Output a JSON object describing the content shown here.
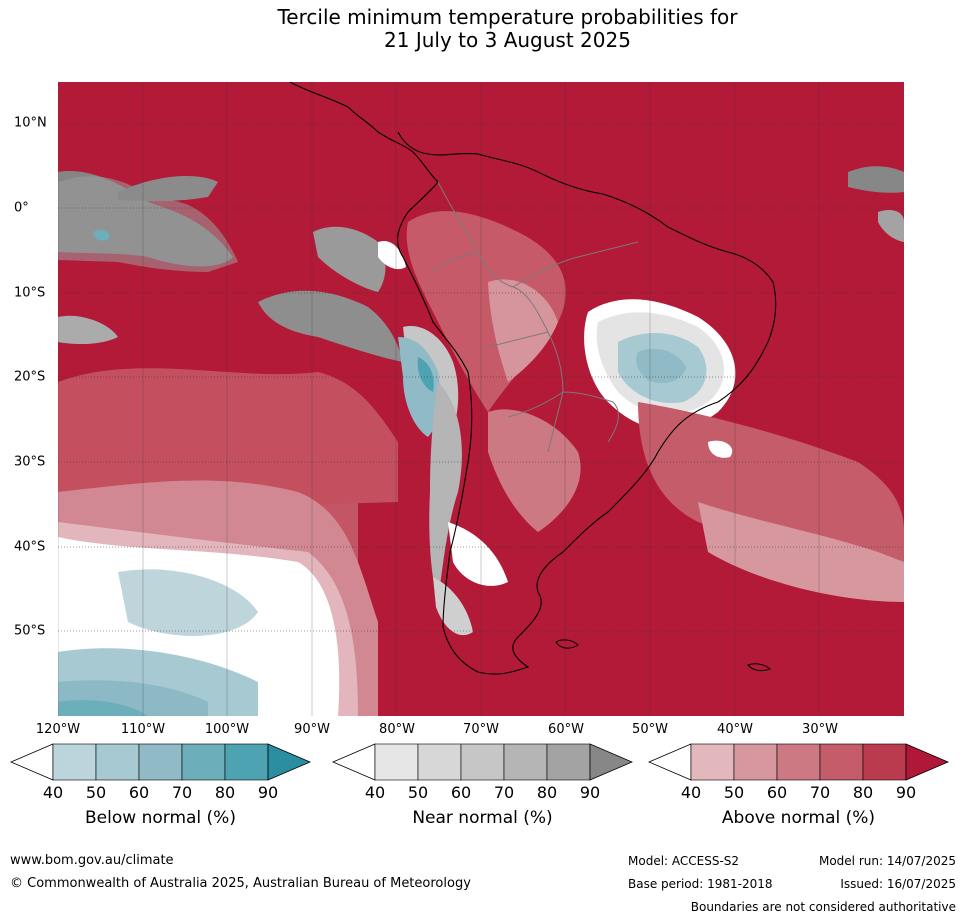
{
  "title_line1": "Tercile minimum temperature probabilities for",
  "title_line2": "21 July to 3 August 2025",
  "lat_labels": [
    "10°N",
    "0°",
    "10°S",
    "20°S",
    "30°S",
    "40°S",
    "50°S"
  ],
  "lon_labels": [
    "120°W",
    "110°W",
    "100°W",
    "90°W",
    "80°W",
    "70°W",
    "60°W",
    "50°W",
    "40°W",
    "30°W"
  ],
  "colorbars": [
    {
      "title": "Below normal (%)",
      "ticks": [
        "40",
        "50",
        "60",
        "70",
        "80",
        "90"
      ],
      "colors": [
        "#ffffff",
        "#bcd4db",
        "#a7c9d1",
        "#8fbac6",
        "#6daebb",
        "#4ea3b2",
        "#2b8ea0"
      ]
    },
    {
      "title": "Near normal (%)",
      "ticks": [
        "40",
        "50",
        "60",
        "70",
        "80",
        "90"
      ],
      "colors": [
        "#ffffff",
        "#e6e6e6",
        "#d7d7d7",
        "#c6c6c6",
        "#b5b5b5",
        "#a3a3a3",
        "#878787"
      ]
    },
    {
      "title": "Above normal (%)",
      "ticks": [
        "40",
        "50",
        "60",
        "70",
        "80",
        "90"
      ],
      "colors": [
        "#ffffff",
        "#e3b8bd",
        "#d6979f",
        "#cc7984",
        "#c45c69",
        "#b93b4d",
        "#b0183a"
      ]
    }
  ],
  "footer": {
    "url": "www.bom.gov.au/climate",
    "copyright": "© Commonwealth of Australia 2025, Australian Bureau of Meteorology",
    "model": "Model: ACCESS-S2",
    "model_run": "Model run: 14/07/2025",
    "base_period": "Base period: 1981-2018",
    "issued": "Issued: 16/07/2025",
    "boundaries": "Boundaries are not considered authoritative"
  }
}
